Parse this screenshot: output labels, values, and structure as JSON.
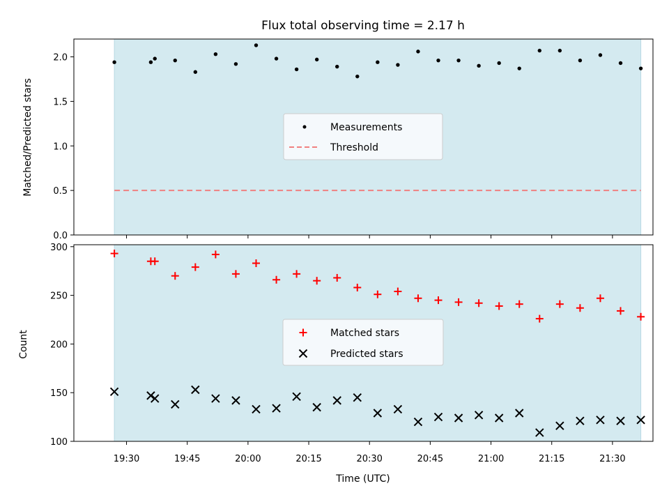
{
  "colors": {
    "span_fill": "#d4eaf0",
    "span_edge": "#b8d9e3",
    "threshold": "#f08080",
    "matched": "#ff0000",
    "predicted": "#000000",
    "measurement": "#000000",
    "legend_bg": "#f5f9fc",
    "legend_edge": "#cccccc"
  },
  "chart_data": [
    {
      "type": "scatter",
      "title": "Flux total observing time = 2.17 h",
      "ylabel": "Matched/Predicted stars",
      "ylim": [
        0,
        2.2
      ],
      "yticks": [
        0.0,
        0.5,
        1.0,
        1.5,
        2.0
      ],
      "ytick_labels": [
        "0.0",
        "0.5",
        "1.0",
        "1.5",
        "2.0"
      ],
      "xlim": [
        "19:17",
        "21:40"
      ],
      "observing_span": [
        "19:27",
        "21:37"
      ],
      "legend_position": "center",
      "threshold": 0.5,
      "series": [
        {
          "name": "Measurements",
          "marker": "dot",
          "x": [
            "19:27",
            "19:36",
            "19:37",
            "19:42",
            "19:47",
            "19:52",
            "19:57",
            "20:02",
            "20:07",
            "20:12",
            "20:17",
            "20:22",
            "20:27",
            "20:32",
            "20:37",
            "20:42",
            "20:47",
            "20:52",
            "20:57",
            "21:02",
            "21:07",
            "21:12",
            "21:17",
            "21:22",
            "21:27",
            "21:32",
            "21:37"
          ],
          "y": [
            1.94,
            1.94,
            1.98,
            1.96,
            1.83,
            2.03,
            1.92,
            2.13,
            1.98,
            1.86,
            1.97,
            1.89,
            1.78,
            1.94,
            1.91,
            2.06,
            1.96,
            1.96,
            1.9,
            1.93,
            1.87,
            2.07,
            2.07,
            1.96,
            2.02,
            1.93,
            1.87
          ]
        },
        {
          "name": "Threshold",
          "style": "dashed",
          "y": 0.5
        }
      ]
    },
    {
      "type": "scatter",
      "xlabel": "Time (UTC)",
      "ylabel": "Count",
      "ylim": [
        100,
        302
      ],
      "yticks": [
        100,
        150,
        200,
        250,
        300
      ],
      "ytick_labels": [
        "100",
        "150",
        "200",
        "250",
        "300"
      ],
      "xlim": [
        "19:17",
        "21:40"
      ],
      "xticks": [
        "19:30",
        "19:45",
        "20:00",
        "20:15",
        "20:30",
        "20:45",
        "21:00",
        "21:15",
        "21:30"
      ],
      "observing_span": [
        "19:27",
        "21:37"
      ],
      "legend_position": "center",
      "series": [
        {
          "name": "Matched stars",
          "marker": "plus",
          "x": [
            "19:27",
            "19:36",
            "19:37",
            "19:42",
            "19:47",
            "19:52",
            "19:57",
            "20:02",
            "20:07",
            "20:12",
            "20:17",
            "20:22",
            "20:27",
            "20:32",
            "20:37",
            "20:42",
            "20:47",
            "20:52",
            "20:57",
            "21:02",
            "21:07",
            "21:12",
            "21:17",
            "21:22",
            "21:27",
            "21:32",
            "21:37"
          ],
          "y": [
            293,
            285,
            285,
            270,
            279,
            292,
            272,
            283,
            266,
            272,
            265,
            268,
            258,
            251,
            254,
            247,
            245,
            243,
            242,
            239,
            241,
            226,
            241,
            237,
            247,
            234,
            228
          ]
        },
        {
          "name": "Predicted stars",
          "marker": "x",
          "x": [
            "19:27",
            "19:36",
            "19:37",
            "19:42",
            "19:47",
            "19:52",
            "19:57",
            "20:02",
            "20:07",
            "20:12",
            "20:17",
            "20:22",
            "20:27",
            "20:32",
            "20:37",
            "20:42",
            "20:47",
            "20:52",
            "20:57",
            "21:02",
            "21:07",
            "21:12",
            "21:17",
            "21:22",
            "21:27",
            "21:32",
            "21:37"
          ],
          "y": [
            151,
            147,
            144,
            138,
            153,
            144,
            142,
            133,
            134,
            146,
            135,
            142,
            145,
            129,
            133,
            120,
            125,
            124,
            127,
            124,
            129,
            109,
            116,
            121,
            122,
            121,
            122
          ]
        }
      ]
    }
  ]
}
